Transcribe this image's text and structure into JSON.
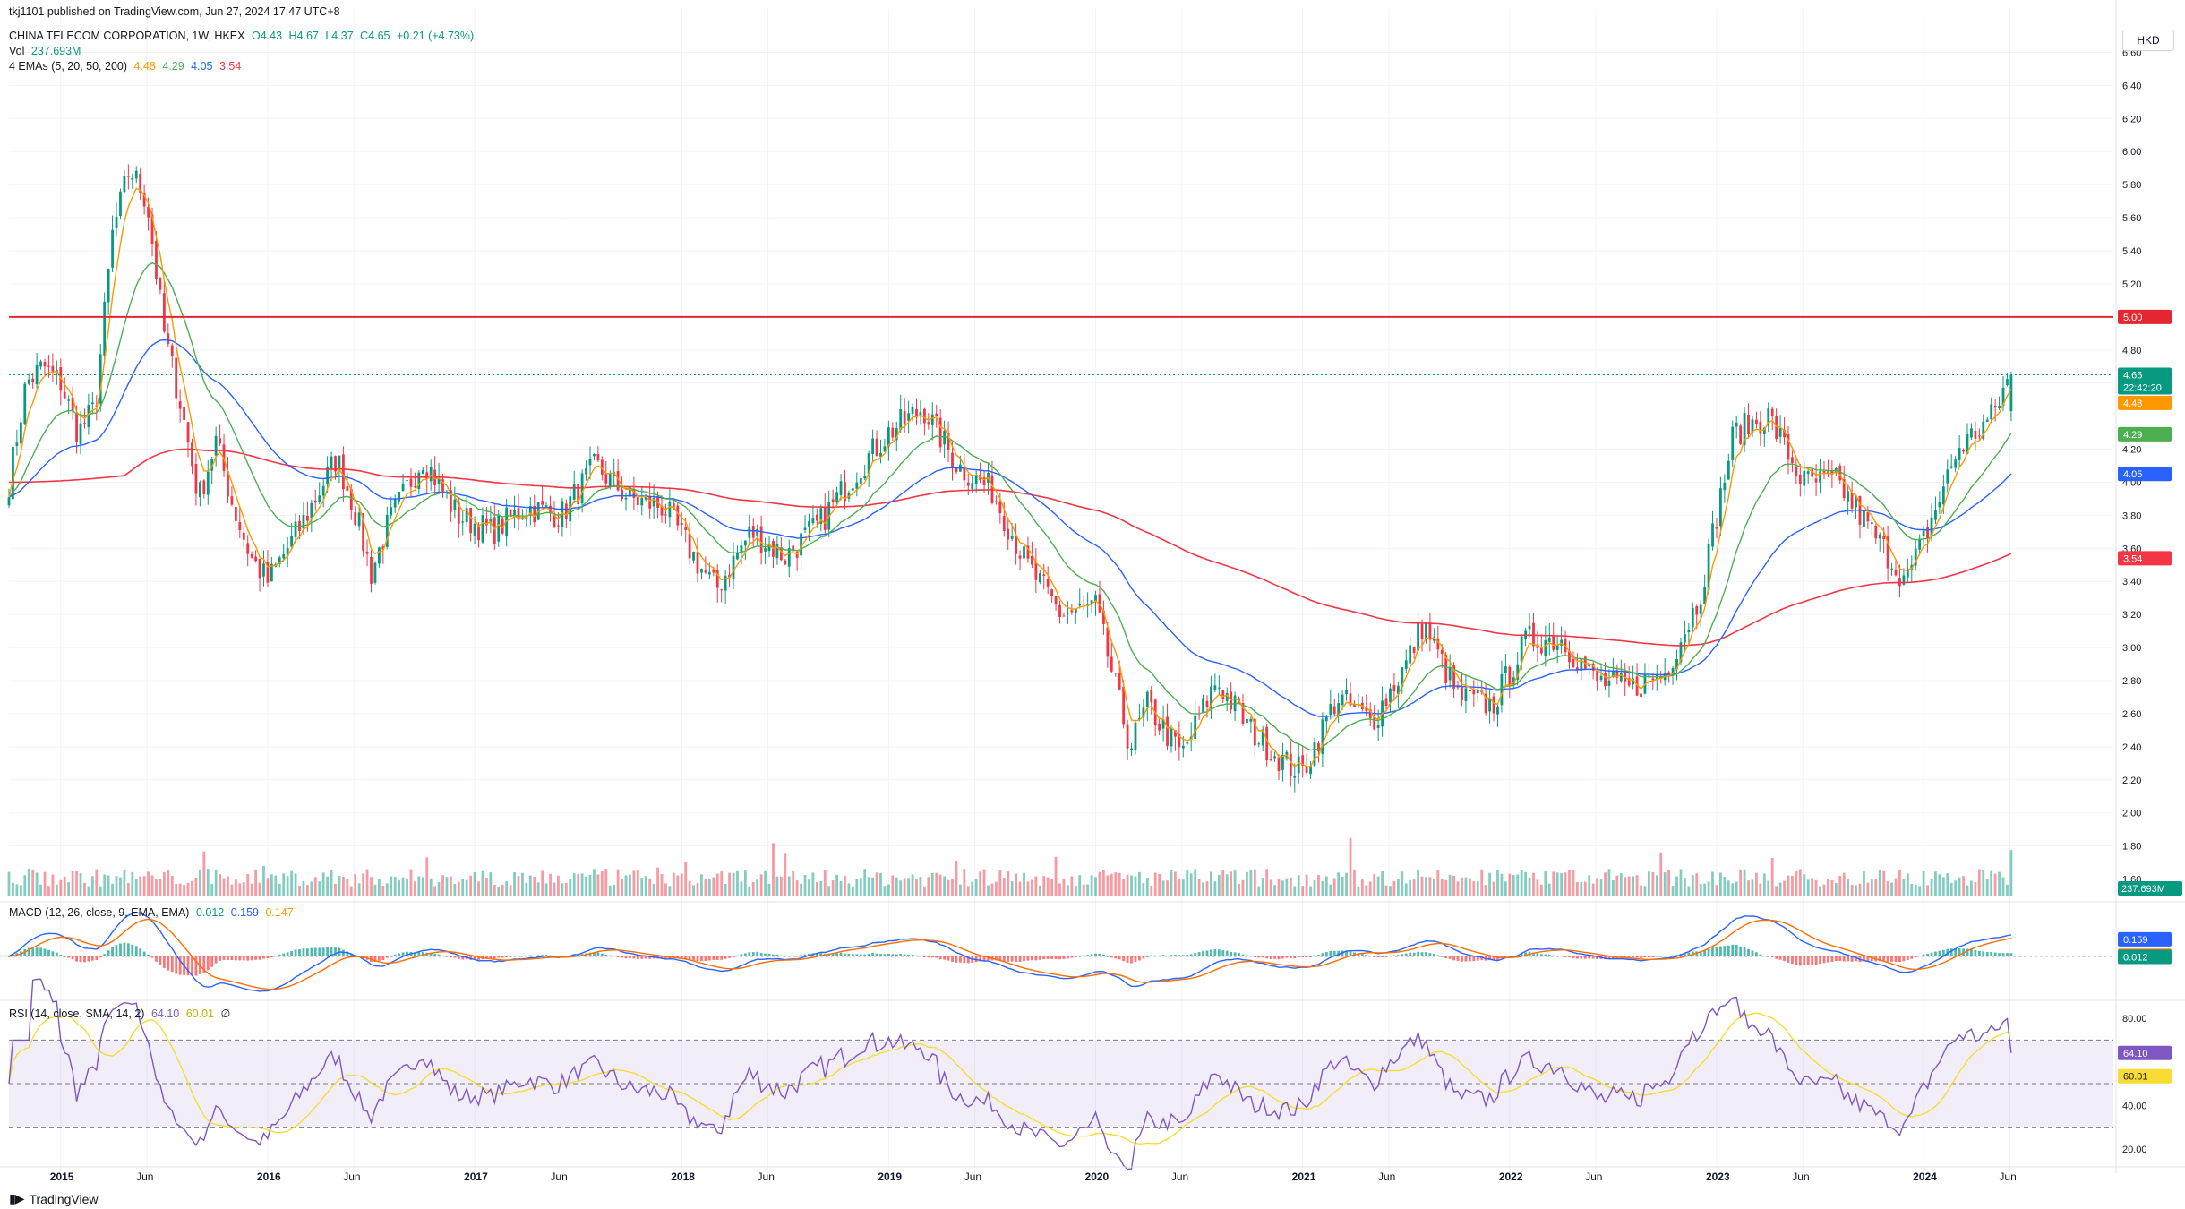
{
  "header": {
    "published": "tkj1101 published on TradingView.com, Jun 27, 2024 17:47 UTC+8",
    "symbol": "CHINA TELECOM CORPORATION, 1W, HKEX",
    "open": "O4.43",
    "high": "H4.67",
    "low": "L4.37",
    "close": "C4.65",
    "change": "+0.21 (+4.73%)",
    "vol_label": "Vol",
    "vol_value": "237.693M",
    "ema_label": "4 EMAs (5, 20, 50, 200)",
    "ema5": "4.48",
    "ema20": "4.29",
    "ema50": "4.05",
    "ema200": "3.54",
    "macd_label": "MACD (12, 26, close, 9, EMA, EMA)",
    "macd_hist": "0.012",
    "macd_line": "0.159",
    "macd_signal": "0.147",
    "rsi_label": "RSI (14, close, SMA, 14, 2)",
    "rsi_value": "64.10",
    "rsi_ma": "60.01",
    "rsi_extra": "∅",
    "currency": "HKD"
  },
  "footer": {
    "brand": "TradingView",
    "logo_icon": "tradingview-logo-icon"
  },
  "colors": {
    "up": "#089981",
    "down": "#f23645",
    "ema5": "#ff9800",
    "ema20": "#4caf50",
    "ema50": "#2962ff",
    "ema200": "#f23645",
    "macd": "#2962ff",
    "signal": "#ff6d00",
    "rsi": "#7e57c2",
    "rsi_ma": "#f7dc33",
    "hline": "#e3262f",
    "grid": "#f0f3fa"
  },
  "labels": {
    "price_axis": [
      "6.60",
      "6.40",
      "6.20",
      "6.00",
      "5.80",
      "5.60",
      "5.40",
      "5.20",
      "5.00",
      "4.80",
      "4.65",
      "4.48",
      "4.29",
      "4.20",
      "4.05",
      "4.00",
      "3.80",
      "3.60",
      "3.54",
      "3.40",
      "3.20",
      "3.00",
      "2.80",
      "2.60",
      "2.40",
      "2.20",
      "2.00",
      "1.80",
      "1.60"
    ],
    "hline_label": "5.00",
    "close_label": "4.65",
    "countdown": "22:42:20",
    "vol_axis_label": "237.693M",
    "macd_axis": [
      "0.159",
      "0.147",
      "0.012"
    ],
    "rsi_axis": [
      "80.00",
      "64.10",
      "60.01",
      "40.00",
      "20.00"
    ],
    "x_axis": [
      "2015",
      "Jun",
      "2016",
      "Jun",
      "2017",
      "Jun",
      "2018",
      "Jun",
      "2019",
      "Jun",
      "2020",
      "Jun",
      "2021",
      "Jun",
      "2022",
      "Jun",
      "2023",
      "Jun",
      "2024",
      "Jun"
    ]
  },
  "chart_data": {
    "type": "candlestick",
    "timeframe": "1W",
    "y_axis": {
      "min": 1.5,
      "max": 6.7,
      "ticks": [
        1.6,
        1.8,
        2.0,
        2.2,
        2.4,
        2.6,
        2.8,
        3.0,
        3.2,
        3.4,
        3.6,
        3.8,
        4.0,
        4.2,
        4.4,
        4.6,
        4.8,
        5.0,
        5.2,
        5.4,
        5.6,
        5.8,
        6.0,
        6.2,
        6.4,
        6.6
      ]
    },
    "horizontal_line": 5.0,
    "last_close": 4.65,
    "close_path": [
      [
        "2014-10",
        4.0
      ],
      [
        "2014-11",
        4.6
      ],
      [
        "2014-12",
        4.7
      ],
      [
        "2015-01",
        4.6
      ],
      [
        "2015-02",
        4.3
      ],
      [
        "2015-03",
        4.45
      ],
      [
        "2015-04",
        5.5
      ],
      [
        "2015-05",
        5.9
      ],
      [
        "2015-06",
        5.7
      ],
      [
        "2015-07",
        4.9
      ],
      [
        "2015-08",
        4.45
      ],
      [
        "2015-09",
        3.9
      ],
      [
        "2015-10",
        4.25
      ],
      [
        "2015-11",
        3.85
      ],
      [
        "2015-12",
        3.55
      ],
      [
        "2016-01",
        3.4
      ],
      [
        "2016-03",
        3.75
      ],
      [
        "2016-05",
        4.15
      ],
      [
        "2016-06",
        3.85
      ],
      [
        "2016-07",
        3.45
      ],
      [
        "2016-08",
        3.75
      ],
      [
        "2016-10",
        4.15
      ],
      [
        "2016-12",
        3.8
      ],
      [
        "2017-02",
        3.7
      ],
      [
        "2017-04",
        3.85
      ],
      [
        "2017-06",
        3.8
      ],
      [
        "2017-08",
        4.1
      ],
      [
        "2017-10",
        3.9
      ],
      [
        "2017-12",
        3.85
      ],
      [
        "2018-02",
        3.5
      ],
      [
        "2018-03",
        3.35
      ],
      [
        "2018-05",
        3.7
      ],
      [
        "2018-07",
        3.55
      ],
      [
        "2018-09",
        3.75
      ],
      [
        "2018-11",
        4.05
      ],
      [
        "2019-01",
        4.3
      ],
      [
        "2019-03",
        4.45
      ],
      [
        "2019-05",
        4.1
      ],
      [
        "2019-07",
        3.95
      ],
      [
        "2019-09",
        3.5
      ],
      [
        "2019-11",
        3.2
      ],
      [
        "2020-01",
        3.25
      ],
      [
        "2020-03",
        2.4
      ],
      [
        "2020-04",
        2.65
      ],
      [
        "2020-06",
        2.35
      ],
      [
        "2020-08",
        2.8
      ],
      [
        "2020-10",
        2.5
      ],
      [
        "2020-12",
        2.3
      ],
      [
        "2021-01",
        2.25
      ],
      [
        "2021-03",
        2.7
      ],
      [
        "2021-05",
        2.55
      ],
      [
        "2021-07",
        2.9
      ],
      [
        "2021-08",
        3.15
      ],
      [
        "2021-10",
        2.7
      ],
      [
        "2021-12",
        2.65
      ],
      [
        "2022-02",
        3.05
      ],
      [
        "2022-04",
        3.05
      ],
      [
        "2022-06",
        2.8
      ],
      [
        "2022-08",
        2.75
      ],
      [
        "2022-10",
        2.85
      ],
      [
        "2022-12",
        3.3
      ],
      [
        "2023-02",
        4.3
      ],
      [
        "2023-04",
        4.4
      ],
      [
        "2023-06",
        4.0
      ],
      [
        "2023-08",
        4.0
      ],
      [
        "2023-10",
        3.7
      ],
      [
        "2023-12",
        3.4
      ],
      [
        "2024-01",
        3.65
      ],
      [
        "2024-03",
        4.2
      ],
      [
        "2024-05",
        4.4
      ],
      [
        "2024-06",
        4.65
      ]
    ],
    "ema_series": [
      {
        "name": "EMA 5",
        "last": 4.48
      },
      {
        "name": "EMA 20",
        "last": 4.29
      },
      {
        "name": "EMA 50",
        "last": 4.05
      },
      {
        "name": "EMA 200",
        "last": 3.54
      }
    ],
    "macd": {
      "macd": 0.159,
      "signal": 0.147,
      "histogram": 0.012
    },
    "rsi": {
      "value": 64.1,
      "ma": 60.01,
      "upper": 70,
      "middle": 50,
      "lower": 30,
      "range": [
        15,
        85
      ]
    }
  }
}
